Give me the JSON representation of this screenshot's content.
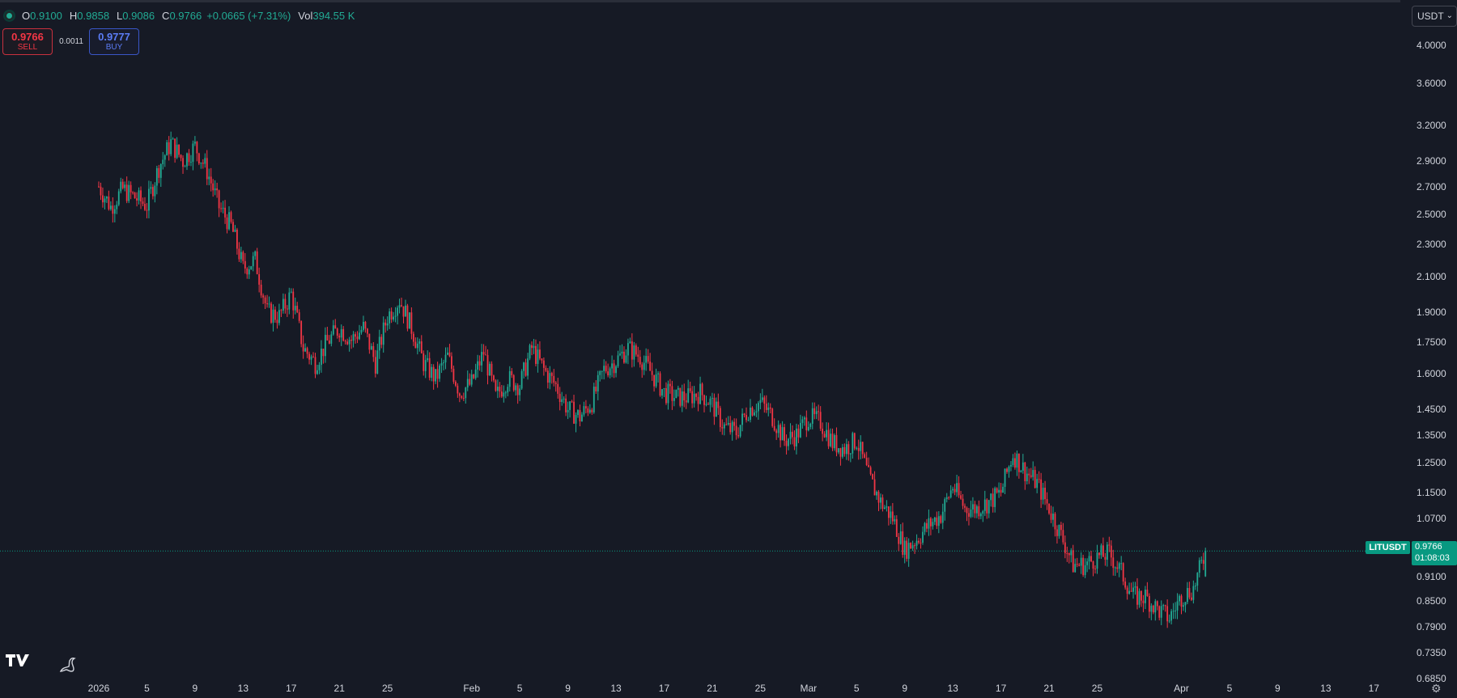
{
  "header": {
    "ohlc": {
      "o_label": "O",
      "o": "0.9100",
      "h_label": "H",
      "h": "0.9858",
      "l_label": "L",
      "l": "0.9086",
      "c_label": "C",
      "c": "0.9766",
      "change": "+0.0665 (+7.31%)",
      "vol_label": "Vol",
      "vol": "394.55 K"
    },
    "sell": {
      "price": "0.9766",
      "label": "SELL"
    },
    "buy": {
      "price": "0.9777",
      "label": "BUY"
    },
    "spread": "0.0011"
  },
  "unit_selector": "USDT",
  "symbol": "LITUSDT",
  "last_price": "0.9766",
  "countdown": "01:08:03",
  "colors": {
    "up": "#22ab94",
    "down": "#f23645",
    "background": "#161a25",
    "text": "#d1d4dc",
    "tag": "#089981"
  },
  "icons": {
    "settings": "gear-icon",
    "logo": "tradingview-logo-icon",
    "dino": "dino-icon"
  },
  "price_axis_labels": [
    "4.0000",
    "3.6000",
    "3.2000",
    "2.9000",
    "2.7000",
    "2.5000",
    "2.3000",
    "2.1000",
    "1.9000",
    "1.7500",
    "1.6000",
    "1.4500",
    "1.3500",
    "1.2500",
    "1.1500",
    "1.0700",
    "0.9100",
    "0.8500",
    "0.7900",
    "0.7350",
    "0.6850"
  ],
  "time_axis_labels": [
    "2026",
    "5",
    "9",
    "13",
    "17",
    "21",
    "25",
    "Feb",
    "5",
    "9",
    "13",
    "17",
    "21",
    "25",
    "Mar",
    "5",
    "9",
    "13",
    "17",
    "21",
    "25",
    "Apr",
    "5",
    "9",
    "13",
    "17"
  ],
  "chart_data": {
    "type": "candlestick",
    "scale": "log",
    "ylim": [
      0.66,
      4.15
    ],
    "xlabel": "",
    "ylabel": "",
    "x_start": "2026-01-01",
    "x_end": "2026-04-19",
    "grid": false,
    "close_path": [
      [
        "2026-01-01",
        2.7
      ],
      [
        "2026-01-02",
        2.55
      ],
      [
        "2026-01-03",
        2.68
      ],
      [
        "2026-01-04",
        2.62
      ],
      [
        "2026-01-05",
        2.56
      ],
      [
        "2026-01-06",
        2.85
      ],
      [
        "2026-01-07",
        3.05
      ],
      [
        "2026-01-08",
        2.9
      ],
      [
        "2026-01-09",
        3.02
      ],
      [
        "2026-01-10",
        2.82
      ],
      [
        "2026-01-11",
        2.55
      ],
      [
        "2026-01-12",
        2.42
      ],
      [
        "2026-01-13",
        2.15
      ],
      [
        "2026-01-14",
        2.2
      ],
      [
        "2026-01-15",
        1.9
      ],
      [
        "2026-01-16",
        1.88
      ],
      [
        "2026-01-17",
        2.0
      ],
      [
        "2026-01-18",
        1.72
      ],
      [
        "2026-01-19",
        1.65
      ],
      [
        "2026-01-20",
        1.75
      ],
      [
        "2026-01-21",
        1.82
      ],
      [
        "2026-01-22",
        1.76
      ],
      [
        "2026-01-23",
        1.82
      ],
      [
        "2026-01-24",
        1.65
      ],
      [
        "2026-01-25",
        1.88
      ],
      [
        "2026-01-26",
        1.97
      ],
      [
        "2026-01-27",
        1.82
      ],
      [
        "2026-01-28",
        1.65
      ],
      [
        "2026-01-29",
        1.58
      ],
      [
        "2026-01-30",
        1.68
      ],
      [
        "2026-01-31",
        1.52
      ],
      [
        "2026-02-01",
        1.56
      ],
      [
        "2026-02-02",
        1.7
      ],
      [
        "2026-02-03",
        1.5
      ],
      [
        "2026-02-04",
        1.58
      ],
      [
        "2026-02-05",
        1.55
      ],
      [
        "2026-02-06",
        1.72
      ],
      [
        "2026-02-07",
        1.62
      ],
      [
        "2026-02-08",
        1.55
      ],
      [
        "2026-02-09",
        1.45
      ],
      [
        "2026-02-10",
        1.42
      ],
      [
        "2026-02-11",
        1.48
      ],
      [
        "2026-02-12",
        1.62
      ],
      [
        "2026-02-13",
        1.66
      ],
      [
        "2026-02-14",
        1.72
      ],
      [
        "2026-02-15",
        1.68
      ],
      [
        "2026-02-16",
        1.6
      ],
      [
        "2026-02-17",
        1.52
      ],
      [
        "2026-02-18",
        1.5
      ],
      [
        "2026-02-19",
        1.5
      ],
      [
        "2026-02-20",
        1.52
      ],
      [
        "2026-02-21",
        1.47
      ],
      [
        "2026-02-22",
        1.38
      ],
      [
        "2026-02-23",
        1.36
      ],
      [
        "2026-02-24",
        1.45
      ],
      [
        "2026-02-25",
        1.48
      ],
      [
        "2026-02-26",
        1.42
      ],
      [
        "2026-02-27",
        1.33
      ],
      [
        "2026-02-28",
        1.35
      ],
      [
        "2026-03-01",
        1.42
      ],
      [
        "2026-03-02",
        1.4
      ],
      [
        "2026-03-03",
        1.32
      ],
      [
        "2026-03-04",
        1.3
      ],
      [
        "2026-03-05",
        1.33
      ],
      [
        "2026-03-06",
        1.2
      ],
      [
        "2026-03-07",
        1.12
      ],
      [
        "2026-03-08",
        1.07
      ],
      [
        "2026-03-09",
        0.98
      ],
      [
        "2026-03-10",
        1.01
      ],
      [
        "2026-03-11",
        1.05
      ],
      [
        "2026-03-12",
        1.08
      ],
      [
        "2026-03-13",
        1.17
      ],
      [
        "2026-03-14",
        1.1
      ],
      [
        "2026-03-15",
        1.1
      ],
      [
        "2026-03-16",
        1.12
      ],
      [
        "2026-03-17",
        1.15
      ],
      [
        "2026-03-18",
        1.28
      ],
      [
        "2026-03-19",
        1.22
      ],
      [
        "2026-03-20",
        1.18
      ],
      [
        "2026-03-21",
        1.1
      ],
      [
        "2026-03-22",
        1.02
      ],
      [
        "2026-03-23",
        0.94
      ],
      [
        "2026-03-24",
        0.94
      ],
      [
        "2026-03-25",
        0.96
      ],
      [
        "2026-03-26",
        0.97
      ],
      [
        "2026-03-27",
        0.92
      ],
      [
        "2026-03-28",
        0.86
      ],
      [
        "2026-03-29",
        0.86
      ],
      [
        "2026-03-30",
        0.83
      ],
      [
        "2026-03-31",
        0.81
      ],
      [
        "2026-04-01",
        0.86
      ],
      [
        "2026-04-02",
        0.88
      ],
      [
        "2026-04-03",
        0.97
      ]
    ],
    "last_candle": {
      "open": 0.91,
      "high": 0.9858,
      "low": 0.9086,
      "close": 0.9766
    }
  }
}
